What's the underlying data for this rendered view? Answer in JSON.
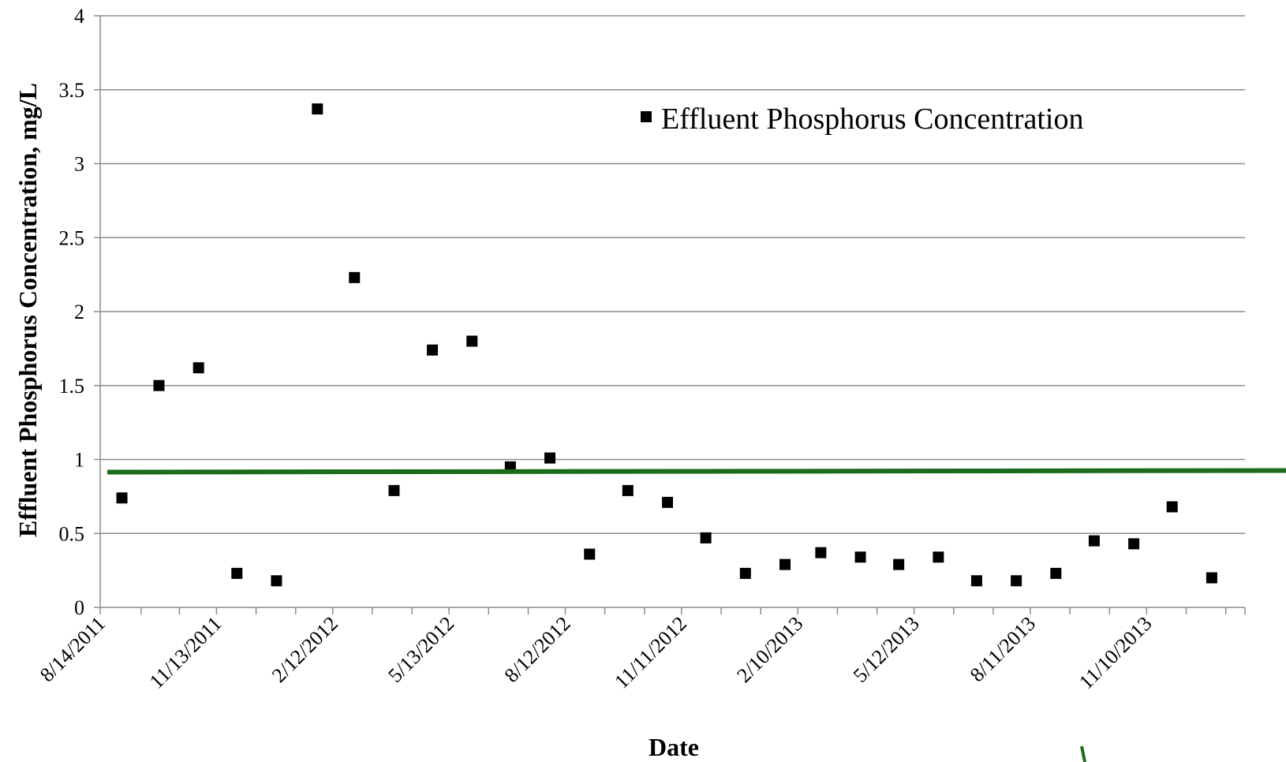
{
  "chart_data": {
    "type": "scatter",
    "xlabel": "Date",
    "ylabel": "Effluent Phosphorus Concentration, mg/L",
    "ylim": [
      0,
      4
    ],
    "y_ticks": [
      "0",
      "0.5",
      "1",
      "1.5",
      "2",
      "2.5",
      "3",
      "3.5",
      "4"
    ],
    "x_range": [
      "2011-08-14",
      "2014-01-26"
    ],
    "x_tick_dates": [
      "2011-08-14",
      "2011-09-15",
      "2011-10-15",
      "2011-11-13",
      "2011-12-14",
      "2012-01-14",
      "2012-02-12",
      "2012-03-14",
      "2012-04-14",
      "2012-05-13",
      "2012-06-13",
      "2012-07-14",
      "2012-08-12",
      "2012-09-12",
      "2012-10-13",
      "2012-11-11",
      "2012-12-12",
      "2013-01-12",
      "2013-02-10",
      "2013-03-13",
      "2013-04-13",
      "2013-05-12",
      "2013-06-12",
      "2013-07-13",
      "2013-08-11",
      "2013-09-11",
      "2013-10-12",
      "2013-11-10",
      "2013-12-11",
      "2014-01-11"
    ],
    "x_tick_labels": [
      "8/14/2011",
      "11/13/2011",
      "2/12/2012",
      "5/13/2012",
      "8/12/2012",
      "11/11/2012",
      "2/10/2013",
      "5/12/2013",
      "8/11/2013",
      "11/10/2013"
    ],
    "grid": true,
    "legend_position": "top-right",
    "series": [
      {
        "name": "Effluent Phosphorus Concentration",
        "marker": "square",
        "color": "#000000",
        "points": [
          {
            "x": "2011-08-31",
            "y": 0.74
          },
          {
            "x": "2011-09-29",
            "y": 1.5
          },
          {
            "x": "2011-10-30",
            "y": 1.62
          },
          {
            "x": "2011-11-29",
            "y": 0.23
          },
          {
            "x": "2011-12-30",
            "y": 0.18
          },
          {
            "x": "2012-01-31",
            "y": 3.37
          },
          {
            "x": "2012-02-29",
            "y": 2.23
          },
          {
            "x": "2012-03-31",
            "y": 0.79
          },
          {
            "x": "2012-04-30",
            "y": 1.74
          },
          {
            "x": "2012-05-31",
            "y": 1.8
          },
          {
            "x": "2012-06-30",
            "y": 0.95
          },
          {
            "x": "2012-07-31",
            "y": 1.01
          },
          {
            "x": "2012-08-31",
            "y": 0.36
          },
          {
            "x": "2012-09-30",
            "y": 0.79
          },
          {
            "x": "2012-10-31",
            "y": 0.71
          },
          {
            "x": "2012-11-30",
            "y": 0.47
          },
          {
            "x": "2012-12-31",
            "y": 0.23
          },
          {
            "x": "2013-01-31",
            "y": 0.29
          },
          {
            "x": "2013-02-28",
            "y": 0.37
          },
          {
            "x": "2013-03-31",
            "y": 0.34
          },
          {
            "x": "2013-04-30",
            "y": 0.29
          },
          {
            "x": "2013-05-31",
            "y": 0.34
          },
          {
            "x": "2013-06-30",
            "y": 0.18
          },
          {
            "x": "2013-07-31",
            "y": 0.18
          },
          {
            "x": "2013-08-31",
            "y": 0.23
          },
          {
            "x": "2013-09-30",
            "y": 0.45
          },
          {
            "x": "2013-10-31",
            "y": 0.43
          },
          {
            "x": "2013-11-30",
            "y": 0.68
          },
          {
            "x": "2013-12-31",
            "y": 0.2
          }
        ]
      }
    ],
    "reference_line": {
      "y": 0.92,
      "color": "#1a6b1a"
    }
  }
}
